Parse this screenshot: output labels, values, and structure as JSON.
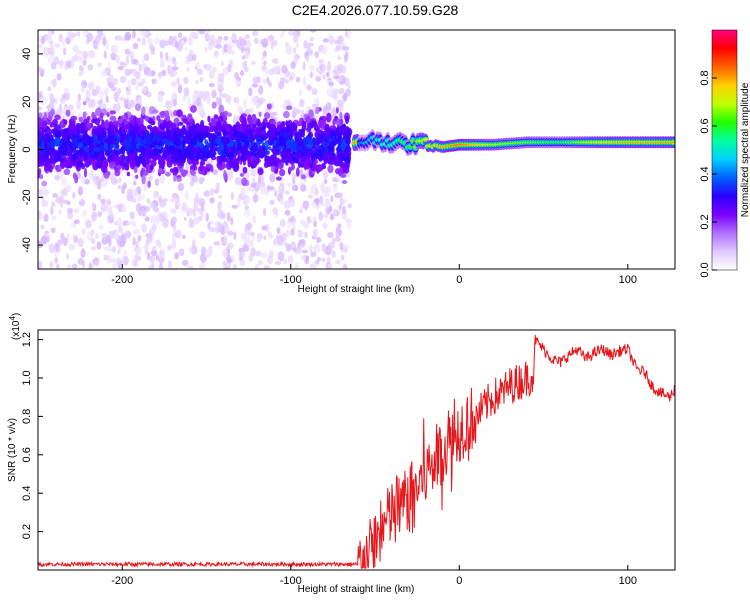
{
  "title": "C2E4.2026.077.10.59.G28",
  "chart_data": [
    {
      "type": "heatmap",
      "xlabel": "Height of straight line (km)",
      "ylabel": "Frequency (Hz)",
      "xlim": [
        -250,
        128
      ],
      "ylim": [
        -50,
        50
      ],
      "xticks": [
        -200,
        -100,
        0,
        100
      ],
      "yticks": [
        -40,
        -20,
        0,
        20,
        40
      ],
      "colorbar": {
        "label": "Normalized spectral amplitude",
        "range": [
          0,
          1
        ],
        "ticks": [
          0.0,
          0.2,
          0.4,
          0.6,
          0.8
        ],
        "colors": [
          "#ffffff",
          "#e0c8ff",
          "#b070ff",
          "#7a00ff",
          "#2a00ff",
          "#0060ff",
          "#00d0ff",
          "#00ffa0",
          "#20ff00",
          "#c0ff00",
          "#ffd000",
          "#ff6000",
          "#ff0000",
          "#ff0080"
        ]
      },
      "trace": [
        {
          "x": -60,
          "f": 3,
          "amp": 0.4
        },
        {
          "x": -50,
          "f": 4,
          "amp": 0.5
        },
        {
          "x": -40,
          "f": 3,
          "amp": 0.55
        },
        {
          "x": -30,
          "f": 2,
          "amp": 0.6
        },
        {
          "x": -20,
          "f": 3,
          "amp": 0.75
        },
        {
          "x": -10,
          "f": 1,
          "amp": 0.8
        },
        {
          "x": 0,
          "f": 2,
          "amp": 0.85
        },
        {
          "x": 20,
          "f": 2,
          "amp": 0.7
        },
        {
          "x": 40,
          "f": 3,
          "amp": 0.65
        },
        {
          "x": 60,
          "f": 3,
          "amp": 0.6
        },
        {
          "x": 80,
          "f": 3,
          "amp": 0.75
        },
        {
          "x": 100,
          "f": 3,
          "amp": 0.8
        },
        {
          "x": 128,
          "f": 3,
          "amp": 0.8
        }
      ]
    },
    {
      "type": "line",
      "xlabel": "Height of straight line (km)",
      "ylabel": "SNR (10 * v/v)",
      "y_scale_label": "(x10",
      "y_scale_exp": "4",
      "y_scale_close": ")",
      "xlim": [
        -250,
        128
      ],
      "ylim": [
        0,
        1.25
      ],
      "xticks": [
        -200,
        -100,
        0,
        100
      ],
      "yticks": [
        0.2,
        0.4,
        0.6,
        0.8,
        1.0,
        1.2
      ],
      "series": [
        {
          "color": "#e8161b",
          "x": [
            -250,
            -200,
            -150,
            -100,
            -60,
            -55,
            -50,
            -45,
            -40,
            -35,
            -30,
            -25,
            -20,
            -15,
            -10,
            -5,
            0,
            5,
            10,
            15,
            20,
            25,
            30,
            35,
            40,
            44,
            45,
            50,
            55,
            60,
            65,
            70,
            75,
            80,
            85,
            90,
            95,
            100,
            105,
            110,
            115,
            120,
            125,
            128
          ],
          "y": [
            0.03,
            0.03,
            0.03,
            0.03,
            0.03,
            0.06,
            0.15,
            0.22,
            0.3,
            0.33,
            0.38,
            0.43,
            0.5,
            0.57,
            0.63,
            0.66,
            0.73,
            0.78,
            0.8,
            0.85,
            0.9,
            0.92,
            0.96,
            0.98,
            1.0,
            1.02,
            1.2,
            1.15,
            1.1,
            1.08,
            1.12,
            1.15,
            1.1,
            1.13,
            1.15,
            1.12,
            1.14,
            1.15,
            1.05,
            1.03,
            0.95,
            0.92,
            0.9,
            0.95
          ]
        }
      ]
    }
  ]
}
